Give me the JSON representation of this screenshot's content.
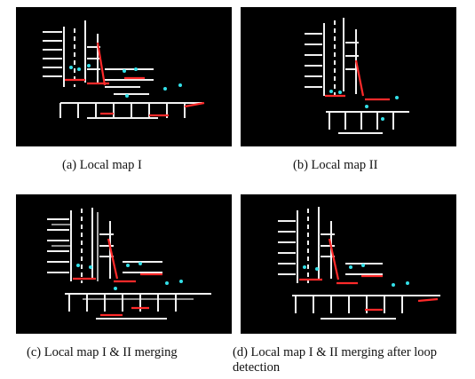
{
  "figure": {
    "panels": [
      {
        "id": "a",
        "label": "(a)",
        "caption": "Local map I"
      },
      {
        "id": "b",
        "label": "(b)",
        "caption": "Local map II"
      },
      {
        "id": "c",
        "label": "(c)",
        "caption": "Local map I & II merging"
      },
      {
        "id": "d",
        "label": "(d)",
        "caption": "Local map I & II merging after loop detection"
      }
    ],
    "colors": {
      "background": "#000000",
      "structure": "#ffffff",
      "edges": "#ff2a2a",
      "features": "#33e0e8"
    }
  }
}
